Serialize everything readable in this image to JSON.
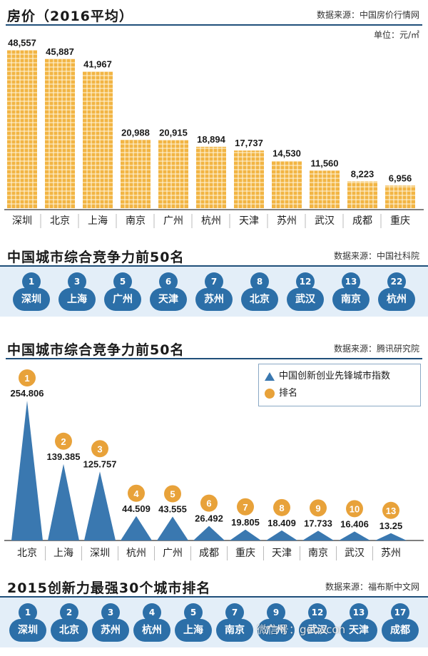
{
  "sections": {
    "prices": {
      "title": "房价（2016平均）",
      "source": "数据来源：中国房价行情网",
      "unit": "单位：元/㎡"
    },
    "rank1": {
      "title": "中国城市综合竞争力前50名",
      "source": "数据来源：中国社科院"
    },
    "rank2": {
      "title": "中国城市综合竞争力前50名",
      "source": "数据来源：腾讯研究院"
    },
    "rank3": {
      "title": "2015创新力最强30个城市排名",
      "source": "数据来源：福布斯中文网"
    }
  },
  "chart_data": [
    {
      "type": "bar",
      "title": "房价（2016平均）",
      "unit": "单位：元/㎡",
      "categories": [
        "深圳",
        "北京",
        "上海",
        "南京",
        "广州",
        "杭州",
        "天津",
        "苏州",
        "武汉",
        "成都",
        "重庆"
      ],
      "values": [
        48557,
        45887,
        41967,
        20988,
        20915,
        18894,
        17737,
        14530,
        11560,
        8223,
        6956
      ],
      "value_labels": [
        "48,557",
        "45,887",
        "41,967",
        "20,988",
        "20,915",
        "18,894",
        "17,737",
        "14,530",
        "11,560",
        "8,223",
        "6,956"
      ],
      "ylim": [
        0,
        50000
      ],
      "color": "#f2b544"
    },
    {
      "type": "table",
      "title": "中国城市综合竞争力前50名",
      "cities": [
        "深圳",
        "上海",
        "广州",
        "天津",
        "苏州",
        "北京",
        "武汉",
        "南京",
        "杭州"
      ],
      "ranks": [
        "1",
        "3",
        "5",
        "6",
        "7",
        "8",
        "12",
        "13",
        "22"
      ]
    },
    {
      "type": "area",
      "title": "中国城市综合竞争力前50名",
      "categories": [
        "北京",
        "上海",
        "深圳",
        "杭州",
        "广州",
        "成都",
        "重庆",
        "天津",
        "南京",
        "武汉",
        "苏州"
      ],
      "values": [
        254.806,
        139.385,
        125.757,
        44.509,
        43.555,
        26.492,
        19.805,
        18.409,
        17.733,
        16.406,
        13.25
      ],
      "value_labels": [
        "254.806",
        "139.385",
        "125.757",
        "44.509",
        "43.555",
        "26.492",
        "19.805",
        "18.409",
        "17.733",
        "16.406",
        "13.25"
      ],
      "ranks": [
        "1",
        "2",
        "3",
        "4",
        "5",
        "6",
        "7",
        "8",
        "9",
        "10",
        "13"
      ],
      "ylim": [
        0,
        260
      ],
      "legend": [
        "中国创新创业先锋城市指数",
        "排名"
      ],
      "color": "#3a78b0",
      "rank_color": "#e8a23a"
    },
    {
      "type": "table",
      "title": "2015创新力最强30个城市排名",
      "cities": [
        "深圳",
        "北京",
        "苏州",
        "杭州",
        "上海",
        "南京",
        "广州",
        "武汉",
        "天津",
        "成都"
      ],
      "ranks": [
        "1",
        "2",
        "3",
        "4",
        "5",
        "7",
        "9",
        "12",
        "13",
        "17"
      ]
    }
  ],
  "watermark": "微信号：geoecon"
}
